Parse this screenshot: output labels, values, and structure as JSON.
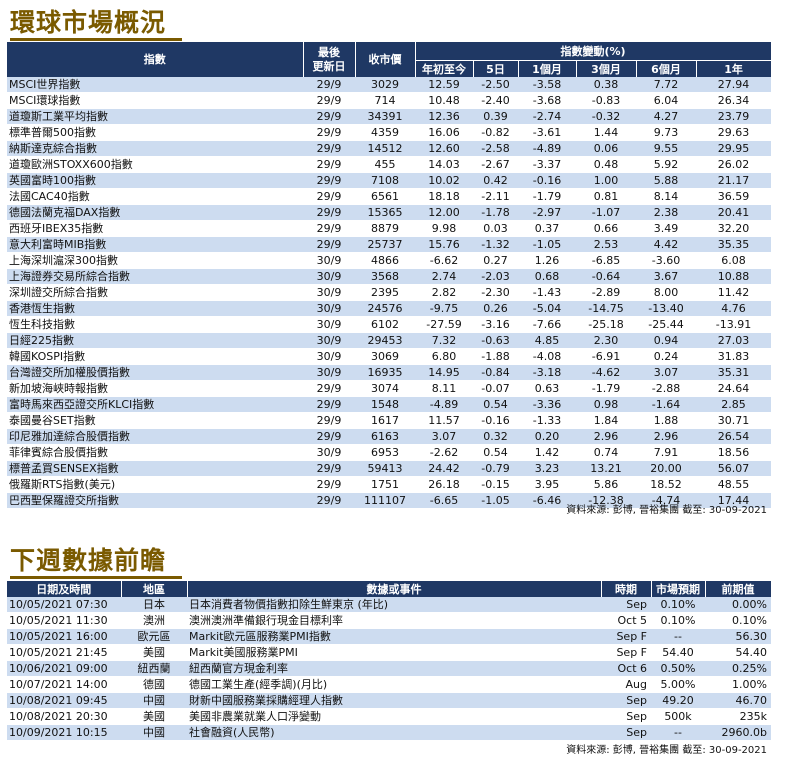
{
  "section1": {
    "title": "環球市場概況",
    "source": "資料來源: 彭博, 晉裕集團 截至: 30-09-2021"
  },
  "market_header": {
    "index": "指數",
    "update_date_1": "最後",
    "update_date_2": "更新日",
    "close": "收市價",
    "change_group": "指數變動(%)",
    "ytd": "年初至今",
    "d5": "5日",
    "m1": "1個月",
    "m3": "3個月",
    "m6": "6個月",
    "y1": "1年"
  },
  "market_rows": [
    {
      "name": "MSCI世界指數",
      "date": "29/9",
      "close": "3029",
      "ytd": "12.59",
      "d5": "-2.50",
      "m1": "-3.58",
      "m3": "0.38",
      "m6": "7.72",
      "y1": "27.94"
    },
    {
      "name": "MSCI環球指數",
      "date": "29/9",
      "close": "714",
      "ytd": "10.48",
      "d5": "-2.40",
      "m1": "-3.68",
      "m3": "-0.83",
      "m6": "6.04",
      "y1": "26.34"
    },
    {
      "name": "道瓊斯工業平均指數",
      "date": "29/9",
      "close": "34391",
      "ytd": "12.36",
      "d5": "0.39",
      "m1": "-2.74",
      "m3": "-0.32",
      "m6": "4.27",
      "y1": "23.79"
    },
    {
      "name": "標準普爾500指數",
      "date": "29/9",
      "close": "4359",
      "ytd": "16.06",
      "d5": "-0.82",
      "m1": "-3.61",
      "m3": "1.44",
      "m6": "9.73",
      "y1": "29.63"
    },
    {
      "name": "納斯達克綜合指數",
      "date": "29/9",
      "close": "14512",
      "ytd": "12.60",
      "d5": "-2.58",
      "m1": "-4.89",
      "m3": "0.06",
      "m6": "9.55",
      "y1": "29.95"
    },
    {
      "name": "道瓊歐洲STOXX600指數",
      "date": "29/9",
      "close": "455",
      "ytd": "14.03",
      "d5": "-2.67",
      "m1": "-3.37",
      "m3": "0.48",
      "m6": "5.92",
      "y1": "26.02"
    },
    {
      "name": "英國富時100指數",
      "date": "29/9",
      "close": "7108",
      "ytd": "10.02",
      "d5": "0.42",
      "m1": "-0.16",
      "m3": "1.00",
      "m6": "5.88",
      "y1": "21.17"
    },
    {
      "name": "法國CAC40指數",
      "date": "29/9",
      "close": "6561",
      "ytd": "18.18",
      "d5": "-2.11",
      "m1": "-1.79",
      "m3": "0.81",
      "m6": "8.14",
      "y1": "36.59"
    },
    {
      "name": "德國法蘭克福DAX指數",
      "date": "29/9",
      "close": "15365",
      "ytd": "12.00",
      "d5": "-1.78",
      "m1": "-2.97",
      "m3": "-1.07",
      "m6": "2.38",
      "y1": "20.41"
    },
    {
      "name": "西班牙IBEX35指數",
      "date": "29/9",
      "close": "8879",
      "ytd": "9.98",
      "d5": "0.03",
      "m1": "0.37",
      "m3": "0.66",
      "m6": "3.49",
      "y1": "32.20"
    },
    {
      "name": "意大利富時MIB指數",
      "date": "29/9",
      "close": "25737",
      "ytd": "15.76",
      "d5": "-1.32",
      "m1": "-1.05",
      "m3": "2.53",
      "m6": "4.42",
      "y1": "35.35"
    },
    {
      "name": "上海深圳滬深300指數",
      "date": "30/9",
      "close": "4866",
      "ytd": "-6.62",
      "d5": "0.27",
      "m1": "1.26",
      "m3": "-6.85",
      "m6": "-3.60",
      "y1": "6.08"
    },
    {
      "name": "上海證券交易所綜合指數",
      "date": "30/9",
      "close": "3568",
      "ytd": "2.74",
      "d5": "-2.03",
      "m1": "0.68",
      "m3": "-0.64",
      "m6": "3.67",
      "y1": "10.88"
    },
    {
      "name": "深圳證交所綜合指數",
      "date": "30/9",
      "close": "2395",
      "ytd": "2.82",
      "d5": "-2.30",
      "m1": "-1.43",
      "m3": "-2.89",
      "m6": "8.00",
      "y1": "11.42"
    },
    {
      "name": "香港恆生指數",
      "date": "30/9",
      "close": "24576",
      "ytd": "-9.75",
      "d5": "0.26",
      "m1": "-5.04",
      "m3": "-14.75",
      "m6": "-13.40",
      "y1": "4.76"
    },
    {
      "name": "恆生科技指數",
      "date": "30/9",
      "close": "6102",
      "ytd": "-27.59",
      "d5": "-3.16",
      "m1": "-7.66",
      "m3": "-25.18",
      "m6": "-25.44",
      "y1": "-13.91"
    },
    {
      "name": "日經225指數",
      "date": "30/9",
      "close": "29453",
      "ytd": "7.32",
      "d5": "-0.63",
      "m1": "4.85",
      "m3": "2.30",
      "m6": "0.94",
      "y1": "27.03"
    },
    {
      "name": "韓國KOSPI指數",
      "date": "30/9",
      "close": "3069",
      "ytd": "6.80",
      "d5": "-1.88",
      "m1": "-4.08",
      "m3": "-6.91",
      "m6": "0.24",
      "y1": "31.83"
    },
    {
      "name": "台灣證交所加權股價指數",
      "date": "30/9",
      "close": "16935",
      "ytd": "14.95",
      "d5": "-0.84",
      "m1": "-3.18",
      "m3": "-4.62",
      "m6": "3.07",
      "y1": "35.31"
    },
    {
      "name": "新加坡海峽時報指數",
      "date": "29/9",
      "close": "3074",
      "ytd": "8.11",
      "d5": "-0.07",
      "m1": "0.63",
      "m3": "-1.79",
      "m6": "-2.88",
      "y1": "24.64"
    },
    {
      "name": "富時馬來西亞證交所KLCI指數",
      "date": "29/9",
      "close": "1548",
      "ytd": "-4.89",
      "d5": "0.54",
      "m1": "-3.36",
      "m3": "0.98",
      "m6": "-1.64",
      "y1": "2.85"
    },
    {
      "name": "泰國曼谷SET指數",
      "date": "29/9",
      "close": "1617",
      "ytd": "11.57",
      "d5": "-0.16",
      "m1": "-1.33",
      "m3": "1.84",
      "m6": "1.88",
      "y1": "30.71"
    },
    {
      "name": "印尼雅加達綜合股價指數",
      "date": "29/9",
      "close": "6163",
      "ytd": "3.07",
      "d5": "0.32",
      "m1": "0.20",
      "m3": "2.96",
      "m6": "2.96",
      "y1": "26.54"
    },
    {
      "name": "菲律賓綜合股價指數",
      "date": "30/9",
      "close": "6953",
      "ytd": "-2.62",
      "d5": "0.54",
      "m1": "1.42",
      "m3": "0.74",
      "m6": "7.91",
      "y1": "18.56"
    },
    {
      "name": "標普孟買SENSEX指數",
      "date": "29/9",
      "close": "59413",
      "ytd": "24.42",
      "d5": "-0.79",
      "m1": "3.23",
      "m3": "13.21",
      "m6": "20.00",
      "y1": "56.07"
    },
    {
      "name": "俄羅斯RTS指數(美元)",
      "date": "29/9",
      "close": "1751",
      "ytd": "26.18",
      "d5": "-0.15",
      "m1": "3.95",
      "m3": "5.86",
      "m6": "18.52",
      "y1": "48.55"
    },
    {
      "name": "巴西聖保羅證交所指數",
      "date": "29/9",
      "close": "111107",
      "ytd": "-6.65",
      "d5": "-1.05",
      "m1": "-6.46",
      "m3": "-12.38",
      "m6": "-4.74",
      "y1": "17.44"
    }
  ],
  "section2": {
    "title": "下週數據前瞻",
    "source": "資料來源: 彭博, 晉裕集團 截至: 30-09-2021"
  },
  "cal_header": {
    "datetime": "日期及時間",
    "region": "地區",
    "event": "數據或事件",
    "period": "時期",
    "forecast": "市場預期",
    "previous": "前期值"
  },
  "cal_rows": [
    {
      "datetime": "10/05/2021 07:30",
      "region": "日本",
      "event": "日本消費者物價指數扣除生鮮東京 (年比)",
      "period": "Sep",
      "forecast": "0.10%",
      "previous": "0.00%"
    },
    {
      "datetime": "10/05/2021 11:30",
      "region": "澳洲",
      "event": "澳洲澳洲準備銀行現金目標利率",
      "period": "Oct 5",
      "forecast": "0.10%",
      "previous": "0.10%"
    },
    {
      "datetime": "10/05/2021 16:00",
      "region": "歐元區",
      "event": "Markit歐元區服務業PMI指數",
      "period": "Sep F",
      "forecast": "--",
      "previous": "56.30"
    },
    {
      "datetime": "10/05/2021 21:45",
      "region": "美國",
      "event": "Markit美國服務業PMI",
      "period": "Sep F",
      "forecast": "54.40",
      "previous": "54.40"
    },
    {
      "datetime": "10/06/2021 09:00",
      "region": "紐西蘭",
      "event": "紐西蘭官方現金利率",
      "period": "Oct 6",
      "forecast": "0.50%",
      "previous": "0.25%"
    },
    {
      "datetime": "10/07/2021 14:00",
      "region": "德國",
      "event": "德國工業生產(經季調)(月比)",
      "period": "Aug",
      "forecast": "5.00%",
      "previous": "1.00%"
    },
    {
      "datetime": "10/08/2021 09:45",
      "region": "中國",
      "event": "財新中國服務業採購經理人指數",
      "period": "Sep",
      "forecast": "49.20",
      "previous": "46.70"
    },
    {
      "datetime": "10/08/2021 20:30",
      "region": "美國",
      "event": "美國非農業就業人口淨變動",
      "period": "Sep",
      "forecast": "500k",
      "previous": "235k"
    },
    {
      "datetime": "10/09/2021 10:15",
      "region": "中國",
      "event": "社會融資(人民幣)",
      "period": "Sep",
      "forecast": "--",
      "previous": "2960.0b"
    }
  ]
}
